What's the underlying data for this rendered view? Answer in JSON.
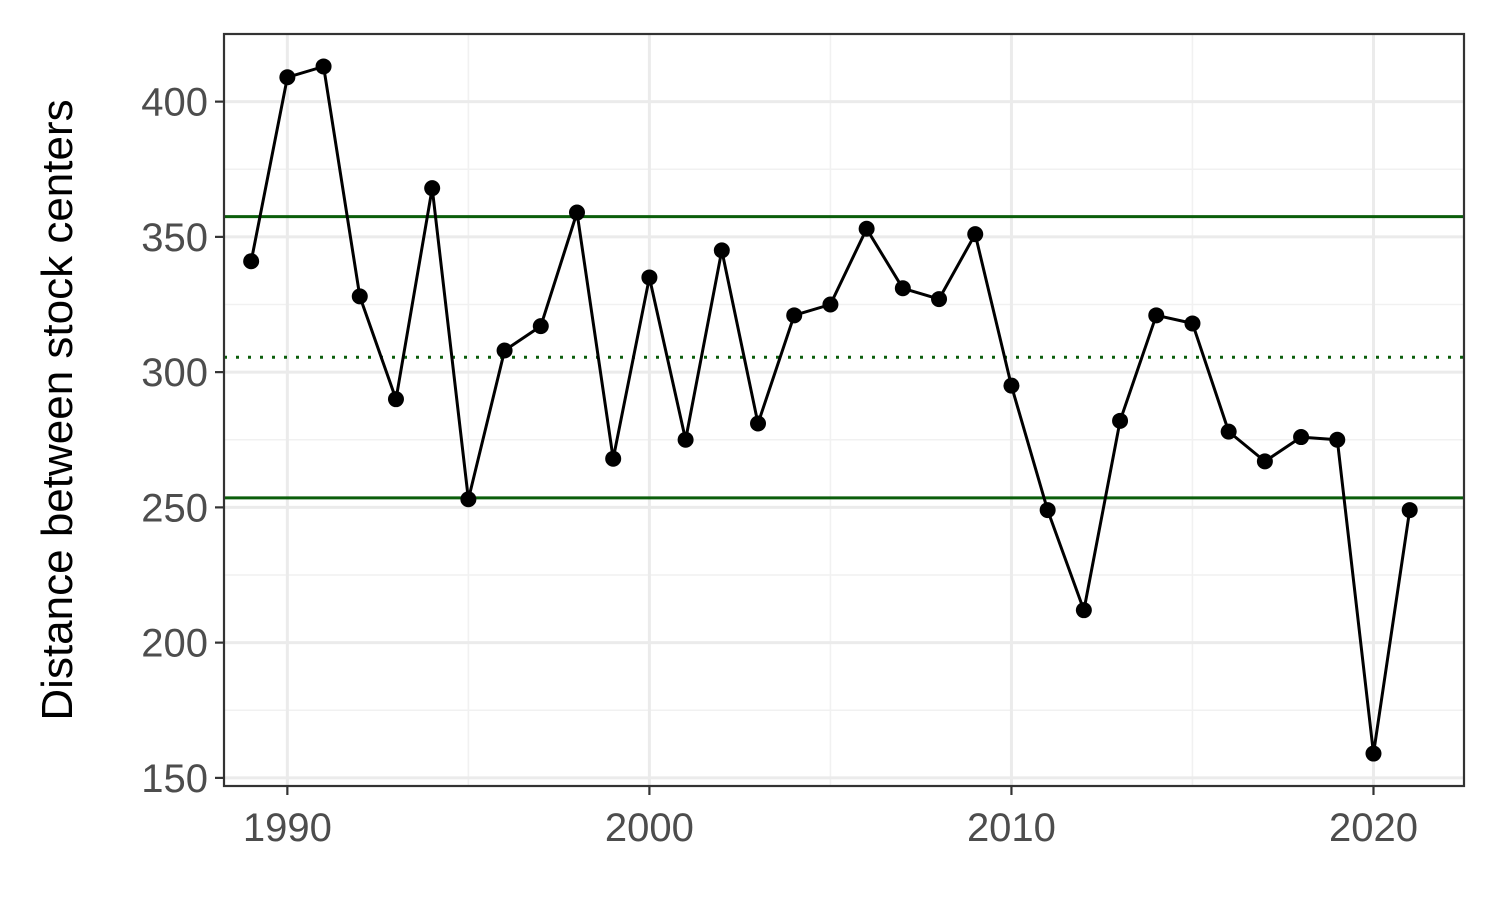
{
  "chart_data": {
    "type": "line",
    "title": "",
    "xlabel": "",
    "ylabel": "Distance between stock centers",
    "xlim": [
      1988.25,
      2022.5
    ],
    "ylim": [
      147,
      425
    ],
    "x_ticks": [
      1990,
      2000,
      2010,
      2020
    ],
    "y_ticks": [
      150,
      200,
      250,
      300,
      350,
      400
    ],
    "grid": true,
    "series": [
      {
        "x": [
          1989,
          1990,
          1991,
          1992,
          1993,
          1994,
          1995,
          1996,
          1997,
          1998,
          1999,
          2000,
          2001,
          2002,
          2003,
          2004,
          2005,
          2006,
          2007,
          2008,
          2009,
          2010,
          2011,
          2012,
          2013,
          2014,
          2015,
          2016,
          2017,
          2018,
          2019,
          2020,
          2021
        ],
        "y": [
          341,
          409,
          413,
          328,
          290,
          368,
          253,
          308,
          317,
          359,
          268,
          335,
          275,
          345,
          281,
          321,
          325,
          353,
          331,
          327,
          351,
          295,
          249,
          212,
          282,
          321,
          318,
          278,
          267,
          276,
          275,
          159,
          249
        ],
        "color": "#000000"
      }
    ],
    "reference_lines": [
      {
        "y": 357.5,
        "style": "solid",
        "color": "#0b5e0b"
      },
      {
        "y": 305.5,
        "style": "dotted",
        "color": "#0b5e0b"
      },
      {
        "y": 253.5,
        "style": "solid",
        "color": "#0b5e0b"
      }
    ]
  }
}
